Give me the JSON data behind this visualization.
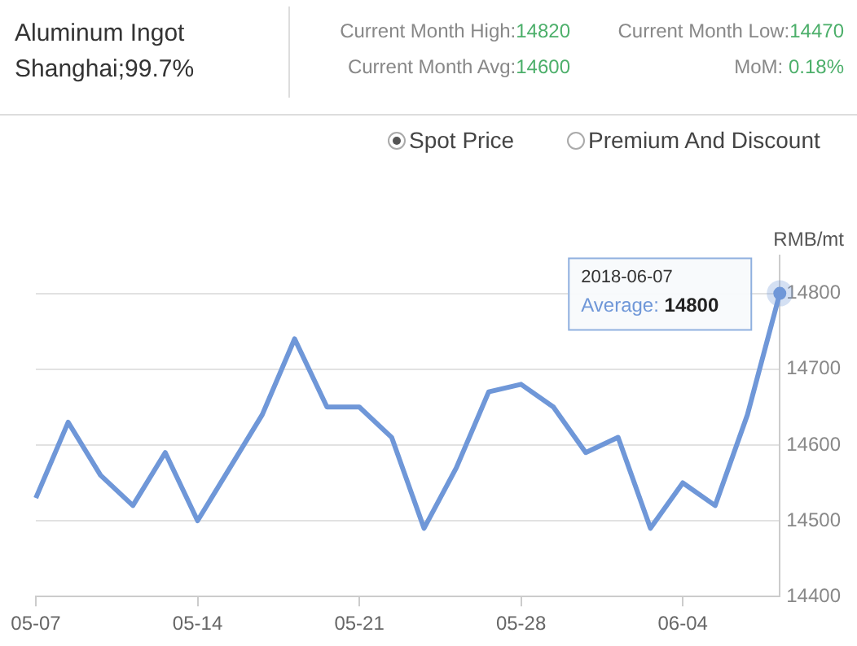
{
  "chart_data": {
    "type": "line",
    "title": "Aluminum Ingot",
    "subtitle": "Shanghai;99.7%",
    "ylabel": "RMB/mt",
    "annotations": [
      "Current Month High:14820",
      "Current Month Low:14470",
      "Current Month Avg:14600",
      "MoM: 0.18%",
      "Spot Price",
      "Premium And Discount",
      "2018-06-07\nAverage: 14800"
    ],
    "categories": [
      "05-07",
      null,
      null,
      null,
      null,
      "05-14",
      null,
      null,
      null,
      null,
      "05-21",
      null,
      null,
      null,
      null,
      "05-28",
      null,
      null,
      null,
      null,
      "06-04",
      null,
      null,
      null
    ],
    "series": [
      {
        "color": "#6f97d8",
        "values": [
          14530,
          14630,
          14560,
          14520,
          14590,
          14500,
          14570,
          14640,
          14740,
          14650,
          14650,
          14610,
          14490,
          14570,
          14670,
          14680,
          14650,
          14590,
          14610,
          14490,
          14550,
          14520,
          14640,
          14800
        ]
      }
    ],
    "ylim": [
      14400,
      14850
    ],
    "yticks": [
      14400,
      14500,
      14600,
      14700,
      14800
    ],
    "grid": "y",
    "legend": false,
    "marker": "none",
    "line_style": "solid"
  }
}
